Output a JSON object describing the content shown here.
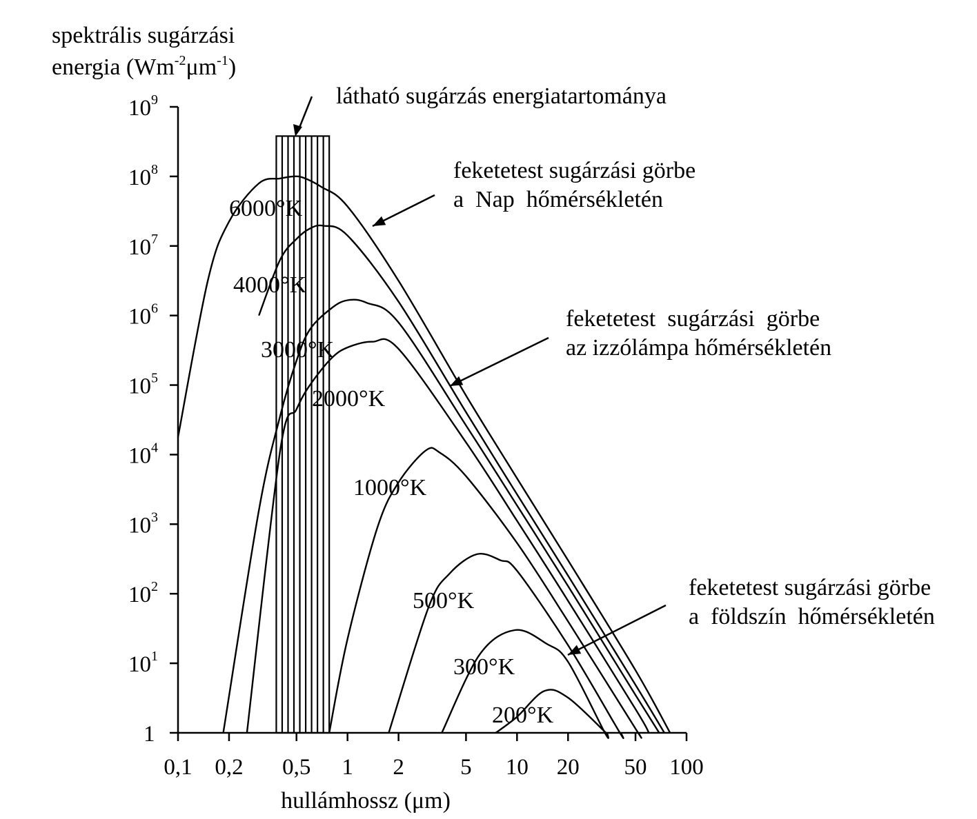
{
  "chart_data": {
    "type": "line",
    "xscale": "log",
    "yscale": "log",
    "xlim": [
      0.1,
      100
    ],
    "ylim": [
      1,
      1000000000
    ],
    "ylabel_line1": "spektrális sugárzási",
    "ylabel_line2_pre": "energia (Wm",
    "ylabel_sup1": "-2",
    "ylabel_mid": "μm",
    "ylabel_sup2": "-1",
    "ylabel_post": ")",
    "xlabel": "hullámhossz (μm)",
    "xticks": [
      {
        "value": 0.1,
        "label": "0,1"
      },
      {
        "value": 0.2,
        "label": "0,2"
      },
      {
        "value": 0.5,
        "label": "0,5"
      },
      {
        "value": 1,
        "label": "1"
      },
      {
        "value": 2,
        "label": "2"
      },
      {
        "value": 5,
        "label": "5"
      },
      {
        "value": 10,
        "label": "10"
      },
      {
        "value": 20,
        "label": "20"
      },
      {
        "value": 50,
        "label": "50"
      },
      {
        "value": 100,
        "label": "100"
      }
    ],
    "yticks": [
      {
        "exp": 0,
        "label": "1",
        "sup": ""
      },
      {
        "exp": 1,
        "label": "10",
        "sup": "1"
      },
      {
        "exp": 2,
        "label": "10",
        "sup": "2"
      },
      {
        "exp": 3,
        "label": "10",
        "sup": "3"
      },
      {
        "exp": 4,
        "label": "10",
        "sup": "4"
      },
      {
        "exp": 5,
        "label": "10",
        "sup": "5"
      },
      {
        "exp": 6,
        "label": "10",
        "sup": "6"
      },
      {
        "exp": 7,
        "label": "10",
        "sup": "7"
      },
      {
        "exp": 8,
        "label": "10",
        "sup": "8"
      },
      {
        "exp": 9,
        "label": "10",
        "sup": "9"
      }
    ],
    "visible_band": {
      "x_range": [
        0.38,
        0.78
      ],
      "top_value": 380000000,
      "line_count": 9,
      "label": "látható sugárzás energiatartománya"
    },
    "series": [
      {
        "label": "6000°K",
        "points": [
          [
            0.1,
            17800
          ],
          [
            0.15,
            3200000
          ],
          [
            0.2,
            22400000
          ],
          [
            0.3,
            79400000
          ],
          [
            0.4,
            93300000
          ],
          [
            0.48,
            100000000
          ],
          [
            0.55,
            95500000
          ],
          [
            0.7,
            70800000
          ],
          [
            1,
            37000000
          ],
          [
            2,
            3160000
          ],
          [
            5,
            70800
          ],
          [
            10,
            4570
          ],
          [
            20,
            302
          ],
          [
            50,
            7.94
          ],
          [
            80,
            0.93
          ]
        ]
      },
      {
        "label": "4000°K",
        "points": [
          [
            0.3,
            1000000
          ],
          [
            0.4,
            6300000
          ],
          [
            0.5,
            12600000
          ],
          [
            0.6,
            17800000
          ],
          [
            0.72,
            19500000
          ],
          [
            1,
            14100000
          ],
          [
            2,
            1580000
          ],
          [
            5,
            40700
          ],
          [
            10,
            2690
          ],
          [
            20,
            182
          ],
          [
            50,
            4.9
          ],
          [
            74,
            0.93
          ]
        ]
      },
      {
        "label": "3000°K",
        "points": [
          [
            0.1,
            0
          ],
          [
            0.185,
            1
          ],
          [
            0.3,
            1580
          ],
          [
            0.4,
            35500
          ],
          [
            0.5,
            224000
          ],
          [
            0.6,
            631000
          ],
          [
            0.8,
            1260000
          ],
          [
            1,
            1660000
          ],
          [
            1.3,
            1520000
          ],
          [
            2,
            794000
          ],
          [
            5,
            26300
          ],
          [
            10,
            1860
          ],
          [
            20,
            129
          ],
          [
            50,
            3.5
          ],
          [
            69,
            0.93
          ]
        ]
      },
      {
        "label": "2000°K",
        "points": [
          [
            0.255,
            1
          ],
          [
            0.4,
            11200
          ],
          [
            0.5,
            44700
          ],
          [
            0.6,
            100000
          ],
          [
            0.8,
            240000
          ],
          [
            1,
            347000
          ],
          [
            1.4,
            420000
          ],
          [
            2,
            331000
          ],
          [
            5,
            15000
          ],
          [
            10,
            1120
          ],
          [
            20,
            79
          ],
          [
            50,
            2.2
          ],
          [
            60,
            0.93
          ]
        ]
      },
      {
        "label": "1000°K",
        "points": [
          [
            0.78,
            1
          ],
          [
            1,
            22.4
          ],
          [
            1.5,
            891
          ],
          [
            2,
            3980
          ],
          [
            2.9,
            11500
          ],
          [
            3.5,
            10700
          ],
          [
            5,
            4900
          ],
          [
            10,
            537
          ],
          [
            20,
            40
          ],
          [
            50,
            1.15
          ],
          [
            52,
            0.93
          ]
        ]
      },
      {
        "label": "500°K",
        "points": [
          [
            1.75,
            1
          ],
          [
            3,
            63
          ],
          [
            4,
            195
          ],
          [
            5.8,
            370
          ],
          [
            8,
            302
          ],
          [
            10,
            214
          ],
          [
            20,
            18.2
          ],
          [
            40,
            1.05
          ],
          [
            41,
            0.93
          ]
        ]
      },
      {
        "label": "300°K",
        "points": [
          [
            3.6,
            1
          ],
          [
            6,
            13.2
          ],
          [
            9.7,
            30
          ],
          [
            15,
            19
          ],
          [
            20,
            10.5
          ],
          [
            33,
            1
          ],
          [
            34,
            0.93
          ]
        ]
      },
      {
        "label": "200°K",
        "points": [
          [
            7.5,
            1
          ],
          [
            10,
            1.7
          ],
          [
            14.5,
            4
          ],
          [
            20,
            3.2
          ],
          [
            33.5,
            1
          ]
        ]
      }
    ],
    "curve_labels": [
      {
        "text": "6000°K",
        "series": 0
      },
      {
        "text": "4000°K",
        "series": 1
      },
      {
        "text": "3000°K",
        "series": 2
      },
      {
        "text": "2000°K",
        "series": 3
      },
      {
        "text": "1000°K",
        "series": 4
      },
      {
        "text": "500°K",
        "series": 5
      },
      {
        "text": "300°K",
        "series": 6
      },
      {
        "text": "200°K",
        "series": 7
      }
    ],
    "annotations": [
      {
        "name": "sun-annotation",
        "lines": [
          "feketetest sugárzási görbe",
          "a  Nap  hőmérsékletén"
        ],
        "target_series": 0
      },
      {
        "name": "lamp-annotation",
        "lines": [
          "feketetest  sugárzási  görbe",
          "az izzólámpa hőmérsékletén"
        ],
        "target_series": 3
      },
      {
        "name": "earth-annotation",
        "lines": [
          "feketetest sugárzási görbe",
          "a  földszín  hőmérsékletén"
        ],
        "target_series": 6
      }
    ]
  }
}
